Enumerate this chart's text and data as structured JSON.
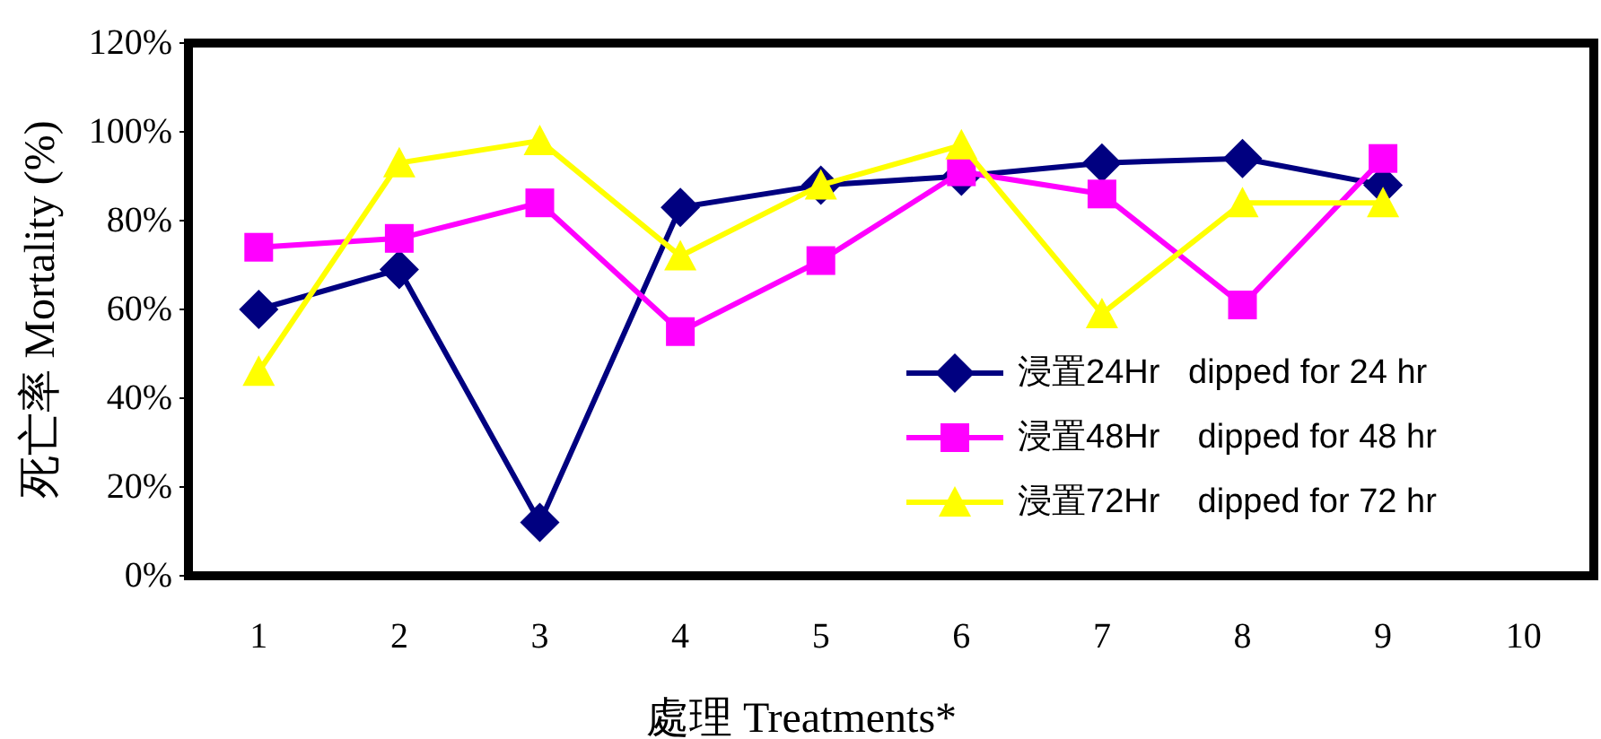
{
  "chart_data": {
    "type": "line",
    "xlabel": "處理 Treatments*",
    "ylabel": "死亡率 Mortality (%)",
    "categories": [
      "1",
      "2",
      "3",
      "4",
      "5",
      "6",
      "7",
      "8",
      "9",
      "10"
    ],
    "series": [
      {
        "name": "浸置24Hr   dipped for 24 hr",
        "color": "#000080",
        "marker": "diamond",
        "values": [
          60,
          69,
          12,
          83,
          88,
          90,
          93,
          94,
          88,
          null
        ]
      },
      {
        "name": "浸置48Hr    dipped for 48 hr",
        "color": "#ff00ff",
        "marker": "square",
        "values": [
          74,
          76,
          84,
          55,
          71,
          91,
          86,
          61,
          94,
          null
        ]
      },
      {
        "name": "浸置72Hr    dipped for 72 hr",
        "color": "#ffff00",
        "marker": "triangle",
        "values": [
          46,
          93,
          98,
          72,
          88,
          97,
          59,
          84,
          84,
          null
        ]
      }
    ],
    "ylim": [
      0,
      120
    ],
    "yticks": [
      {
        "value": 0,
        "label": "0%"
      },
      {
        "value": 20,
        "label": "20%"
      },
      {
        "value": 40,
        "label": "40%"
      },
      {
        "value": 60,
        "label": "60%"
      },
      {
        "value": 80,
        "label": "80%"
      },
      {
        "value": 100,
        "label": "100%"
      },
      {
        "value": 120,
        "label": "120%"
      }
    ],
    "grid": false,
    "legend": "bottom right"
  }
}
